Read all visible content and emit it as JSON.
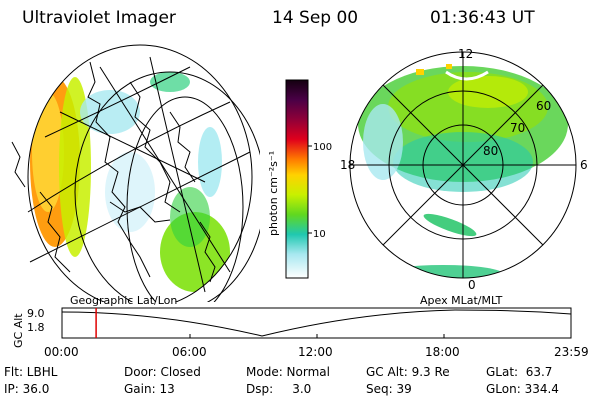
{
  "header": {
    "instrument": "Ultraviolet Imager",
    "date": "14 Sep 00",
    "time": "01:36:43 UT"
  },
  "colorbar": {
    "label": "photon cm⁻²s⁻¹",
    "ticks": [
      "100",
      "10"
    ],
    "scale": "log",
    "colors": [
      "#1a0016",
      "#3c003a",
      "#6a0052",
      "#a0002c",
      "#e0001c",
      "#ff7a00",
      "#ffd200",
      "#c8f000",
      "#78e000",
      "#30d040",
      "#20c8b0",
      "#a0e8f0",
      "#ffffff"
    ]
  },
  "geo_panel": {
    "caption": "Geographic Lat/Lon"
  },
  "polar_panel": {
    "caption": "Apex  MLat/MLT",
    "mlt_labels": {
      "top": "12",
      "left": "18",
      "right": "6",
      "bottom": "0"
    },
    "lat_labels": [
      "60",
      "70",
      "80"
    ]
  },
  "timeline": {
    "ylabel": "GC Alt",
    "yticks": [
      "9.0",
      "1.8"
    ],
    "xticks": [
      "00:00",
      "06:00",
      "12:00",
      "18:00",
      "23:59"
    ],
    "marker_fraction": 0.067
  },
  "info": {
    "flt": "Flt: LBHL",
    "ip": "IP: 36.0",
    "door": "Door: Closed",
    "gain": "Gain: 13",
    "mode": "Mode: Normal",
    "dsp": "Dsp:     3.0",
    "gcalt": "GC Alt: 9.3 Re",
    "seq": "Seq: 39",
    "glat": "GLat:  63.7",
    "glon": "GLon: 334.4"
  }
}
